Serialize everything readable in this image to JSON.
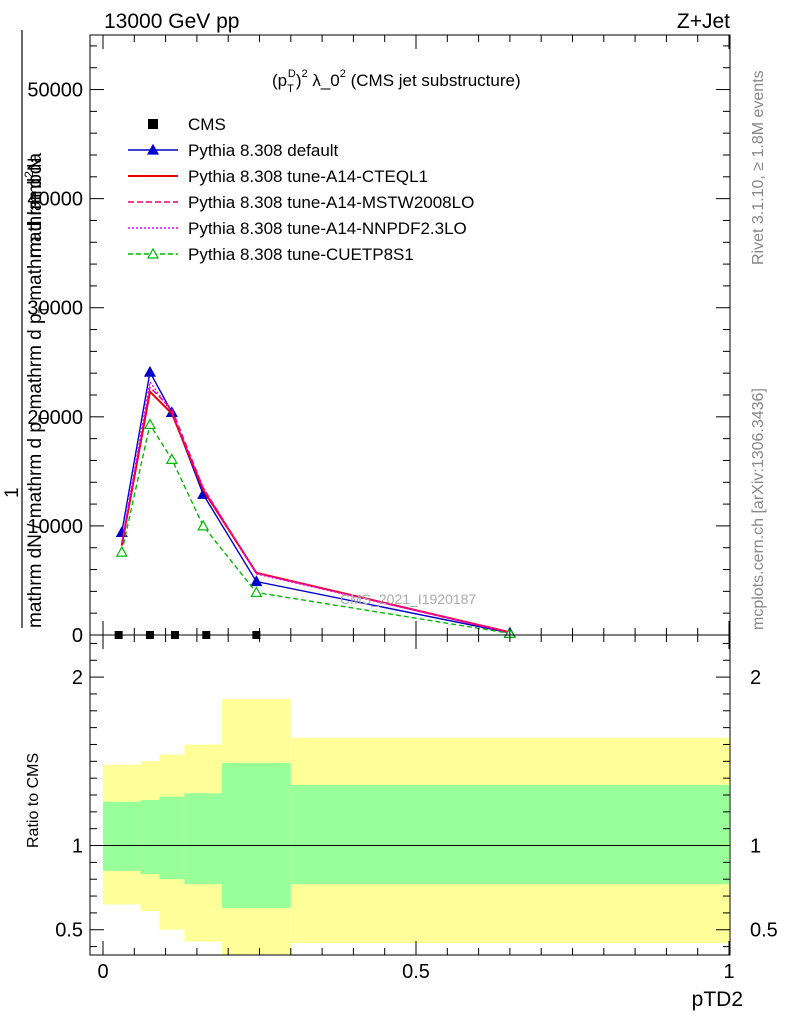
{
  "header": {
    "left": "13000 GeV pp",
    "right": "Z+Jet"
  },
  "side_labels": {
    "rivet": "Rivet 3.1.10, ≥ 1.8M events",
    "mcplots": "mcplots.cern.ch [arXiv:1306.3436]"
  },
  "chart_data": [
    {
      "type": "line",
      "title": "(p_T^D)^2 λ_0^2 (CMS jet substructure)",
      "title_parts": {
        "a": "(p",
        "sub": "T",
        "sup1": "D",
        "b": ")",
        "sup2": "2",
        "c": " λ_0",
        "sup3": "2",
        "d": " (CMS jet substructure)"
      },
      "ylabel_lines": [
        "1",
        "mathrm dN / mathrm d p_T mathrm d p_T mathrm d lambda",
        "mathrm d^2N"
      ],
      "ylabel_parts": {
        "one": "1",
        "den_a": "mathrm dN / mathrm d p",
        "den_sub": "T",
        "den_b": " mathrm d p",
        "den_sub2": "T",
        "den_c": " mathrm d lambda",
        "num_a": "mathrm d",
        "num_sup": "2",
        "num_b": "N"
      },
      "xlim": [
        0,
        1
      ],
      "ylim": [
        0,
        55000
      ],
      "y_ticks": [
        0,
        10000,
        20000,
        30000,
        40000,
        50000
      ],
      "y_tick_labels": [
        "0",
        "10000",
        "20000",
        "30000",
        "40000",
        "50000"
      ],
      "watermark": "CMS_2021_I1920187",
      "legend_position": "top-left",
      "series": [
        {
          "name": "CMS",
          "style": "markers",
          "color": "#000000",
          "x": [
            0.025,
            0.075,
            0.115,
            0.165,
            0.245
          ],
          "y": [
            0,
            0,
            0,
            0,
            0
          ]
        },
        {
          "name": "Pythia 8.308 default",
          "style": "solid-triangle",
          "color": "#0000cc",
          "x": [
            0.03,
            0.075,
            0.11,
            0.16,
            0.245,
            0.65
          ],
          "y": [
            9400,
            24100,
            20400,
            12900,
            4900,
            200
          ]
        },
        {
          "name": "Pythia 8.308 tune-A14-CTEQL1",
          "style": "solid",
          "color": "#ee0000",
          "x": [
            0.03,
            0.075,
            0.11,
            0.16,
            0.245,
            0.65
          ],
          "y": [
            8200,
            22300,
            20300,
            13300,
            5700,
            250
          ]
        },
        {
          "name": "Pythia 8.308 tune-A14-MSTW2008LO",
          "style": "dashed",
          "color": "#ee0077",
          "x": [
            0.03,
            0.075,
            0.11,
            0.16,
            0.245,
            0.65
          ],
          "y": [
            8400,
            22700,
            20700,
            13500,
            5700,
            250
          ]
        },
        {
          "name": "Pythia 8.308 tune-A14-NNPDF2.3LO",
          "style": "dotted",
          "color": "#ee00ee",
          "x": [
            0.03,
            0.075,
            0.11,
            0.16,
            0.245,
            0.65
          ],
          "y": [
            8400,
            23200,
            20400,
            13500,
            5600,
            250
          ]
        },
        {
          "name": "Pythia 8.308 tune-CUETP8S1",
          "style": "dashed-open-triangle",
          "color": "#00bb00",
          "x": [
            0.03,
            0.075,
            0.11,
            0.16,
            0.245,
            0.65
          ],
          "y": [
            7600,
            19300,
            16100,
            10000,
            3900,
            150
          ]
        }
      ]
    },
    {
      "type": "area",
      "title": "",
      "ylabel": "Ratio to CMS",
      "xlabel": "pTD2",
      "xlim": [
        0,
        1
      ],
      "ylim": [
        0.35,
        2.25
      ],
      "y_ticks": [
        0.5,
        1,
        2
      ],
      "y_tick_labels": [
        "0.5",
        "1",
        "2"
      ],
      "x_ticks": [
        0,
        0.5,
        1
      ],
      "x_tick_labels": [
        "0",
        "0.5",
        "1"
      ],
      "bins": [
        {
          "x0": 0.0,
          "x1": 0.06,
          "band_inner": [
            0.85,
            1.26
          ],
          "band_outer": [
            0.65,
            1.48
          ]
        },
        {
          "x0": 0.06,
          "x1": 0.09,
          "band_inner": [
            0.83,
            1.27
          ],
          "band_outer": [
            0.61,
            1.5
          ]
        },
        {
          "x0": 0.09,
          "x1": 0.13,
          "band_inner": [
            0.8,
            1.29
          ],
          "band_outer": [
            0.5,
            1.54
          ]
        },
        {
          "x0": 0.13,
          "x1": 0.19,
          "band_inner": [
            0.77,
            1.31
          ],
          "band_outer": [
            0.43,
            1.6
          ]
        },
        {
          "x0": 0.19,
          "x1": 0.3,
          "band_inner": [
            0.63,
            1.49
          ],
          "band_outer": [
            0.35,
            1.87
          ]
        },
        {
          "x0": 0.3,
          "x1": 1.0,
          "band_inner": [
            0.77,
            1.36
          ],
          "band_outer": [
            0.42,
            1.64
          ]
        }
      ],
      "reference_line": 1
    }
  ]
}
